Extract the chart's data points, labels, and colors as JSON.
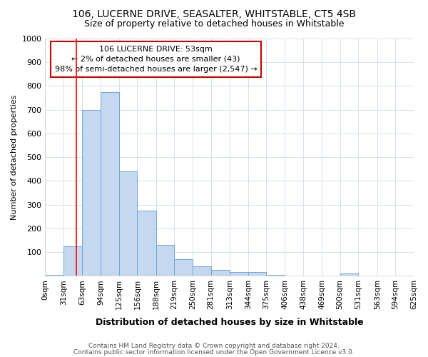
{
  "title1": "106, LUCERNE DRIVE, SEASALTER, WHITSTABLE, CT5 4SB",
  "title2": "Size of property relative to detached houses in Whitstable",
  "xlabel": "Distribution of detached houses by size in Whitstable",
  "ylabel": "Number of detached properties",
  "footnote1": "Contains HM Land Registry data © Crown copyright and database right 2024.",
  "footnote2": "Contains public sector information licensed under the Open Government Licence v3.0.",
  "annotation_line1": "106 LUCERNE DRIVE: 53sqm",
  "annotation_line2": "← 2% of detached houses are smaller (43)",
  "annotation_line3": "98% of semi-detached houses are larger (2,547) →",
  "bin_edges": [
    0,
    31,
    63,
    94,
    125,
    156,
    188,
    219,
    250,
    281,
    313,
    344,
    375,
    406,
    438,
    469,
    500,
    531,
    563,
    594,
    625
  ],
  "bar_heights": [
    5,
    125,
    700,
    775,
    440,
    275,
    130,
    70,
    40,
    25,
    15,
    15,
    5,
    0,
    0,
    0,
    10,
    0,
    0,
    0
  ],
  "bar_color": "#c5d8f0",
  "bar_edgecolor": "#6aaad4",
  "red_line_x": 53,
  "ylim": [
    0,
    1000
  ],
  "yticks": [
    0,
    100,
    200,
    300,
    400,
    500,
    600,
    700,
    800,
    900,
    1000
  ],
  "xtick_labels": [
    "0sqm",
    "31sqm",
    "63sqm",
    "94sqm",
    "125sqm",
    "156sqm",
    "188sqm",
    "219sqm",
    "250sqm",
    "281sqm",
    "313sqm",
    "344sqm",
    "375sqm",
    "406sqm",
    "438sqm",
    "469sqm",
    "500sqm",
    "531sqm",
    "563sqm",
    "594sqm",
    "625sqm"
  ],
  "bg_color": "#ffffff",
  "grid_color": "#d0dce8",
  "annotation_box_facecolor": "#ffffff",
  "annotation_box_edgecolor": "#cc0000"
}
